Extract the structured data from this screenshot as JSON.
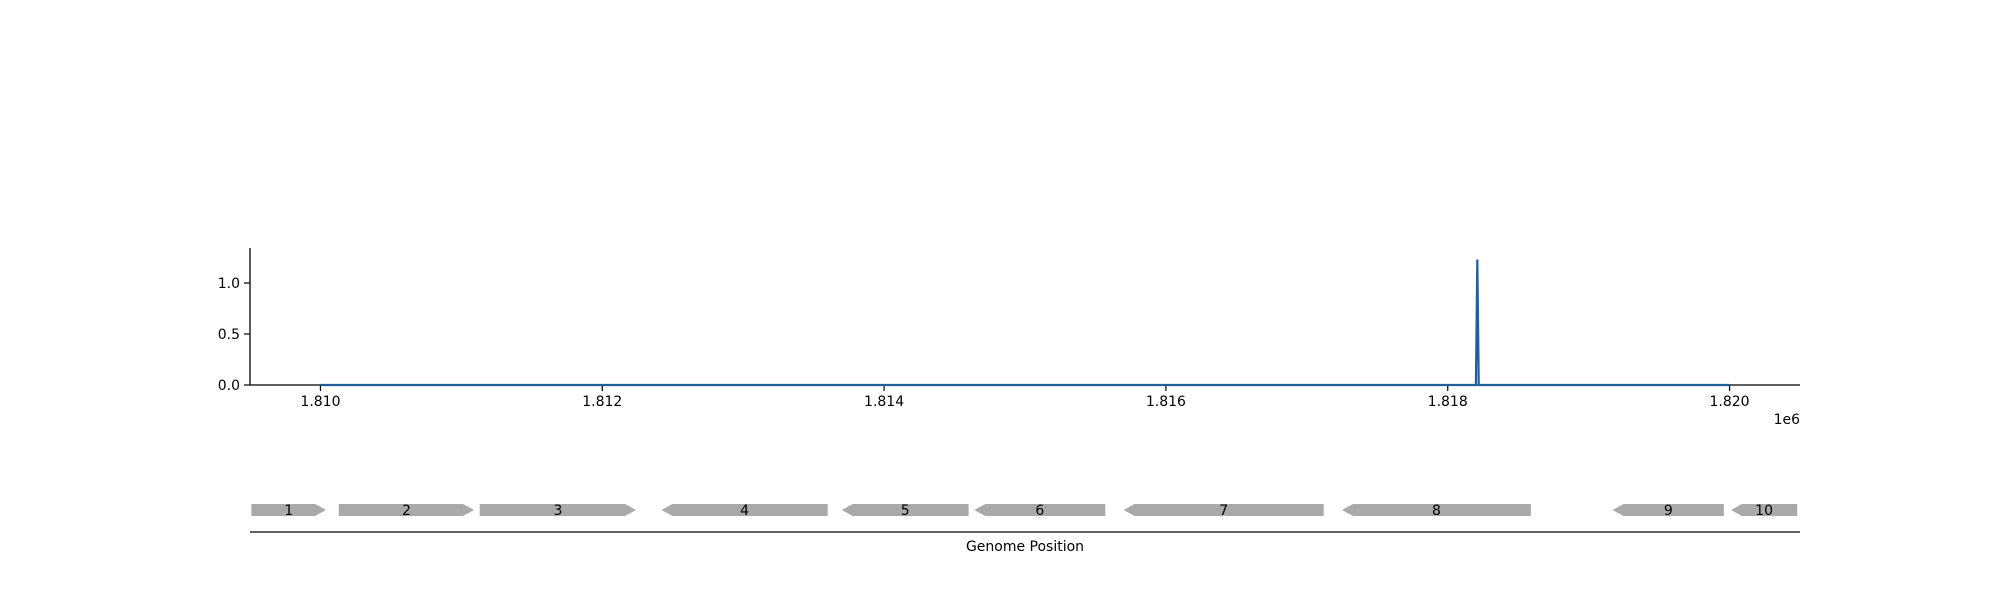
{
  "chart_data": {
    "type": "line",
    "title": "",
    "xlabel": "Genome Position",
    "ylabel": "",
    "x_offset_label": "1e6",
    "xlim": [
      1809500,
      1820500
    ],
    "ylim": [
      0,
      1.35
    ],
    "x_ticks": [
      1810000,
      1812000,
      1814000,
      1816000,
      1818000,
      1820000
    ],
    "x_tick_labels": [
      "1.810",
      "1.812",
      "1.814",
      "1.816",
      "1.818",
      "1.820"
    ],
    "y_ticks": [
      0.0,
      0.5,
      1.0
    ],
    "y_tick_labels": [
      "0.0",
      "0.5",
      "1.0"
    ],
    "grid": false,
    "series": [
      {
        "x": [
          1810000,
          1818200,
          1818210,
          1818220,
          1820000
        ],
        "y": [
          0,
          0,
          1.23,
          0,
          0
        ]
      }
    ],
    "genes": [
      {
        "label": "1",
        "start": 1809510,
        "end": 1810040,
        "strand": "+"
      },
      {
        "label": "2",
        "start": 1810130,
        "end": 1811090,
        "strand": "+"
      },
      {
        "label": "3",
        "start": 1811130,
        "end": 1812240,
        "strand": "+"
      },
      {
        "label": "4",
        "start": 1812420,
        "end": 1813600,
        "strand": "-"
      },
      {
        "label": "5",
        "start": 1813700,
        "end": 1814600,
        "strand": "-"
      },
      {
        "label": "6",
        "start": 1814640,
        "end": 1815570,
        "strand": "-"
      },
      {
        "label": "7",
        "start": 1815700,
        "end": 1817120,
        "strand": "-"
      },
      {
        "label": "8",
        "start": 1817250,
        "end": 1818590,
        "strand": "-"
      },
      {
        "label": "9",
        "start": 1819170,
        "end": 1819960,
        "strand": "-"
      },
      {
        "label": "10",
        "start": 1820010,
        "end": 1820480,
        "strand": "-"
      }
    ],
    "colors": {
      "line": "#1f5fa0",
      "gene": "#a9a9a9",
      "axis": "#000000"
    }
  }
}
